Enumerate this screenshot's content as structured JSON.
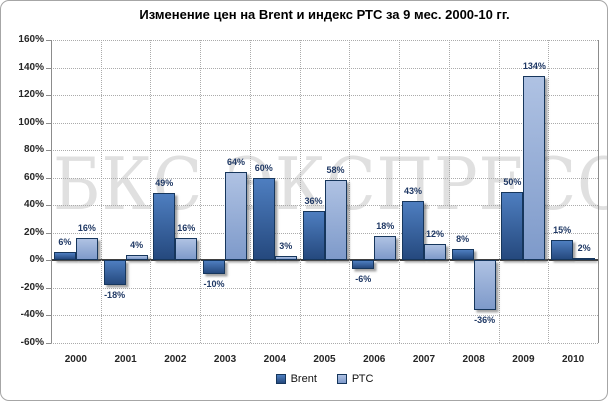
{
  "watermark": "БКС ЭКСПРЕСС",
  "chart_data": {
    "type": "bar",
    "title": "Изменение цен на Brent и индекс РТС за 9 мес. 2000-10 гг.",
    "categories": [
      "2000",
      "2001",
      "2002",
      "2003",
      "2004",
      "2005",
      "2006",
      "2007",
      "2008",
      "2009",
      "2010"
    ],
    "series": [
      {
        "name": "Brent",
        "slug": "brent",
        "values": [
          6,
          -18,
          49,
          -10,
          60,
          36,
          -6,
          43,
          8,
          50,
          15
        ],
        "color": "#2F5B99",
        "gradient_top": "#4E7EC0",
        "gradient_bottom": "#25497E"
      },
      {
        "name": "РТС",
        "slug": "rts",
        "values": [
          16,
          4,
          16,
          64,
          3,
          58,
          18,
          12,
          -36,
          134,
          2
        ],
        "color": "#92ABD6",
        "gradient_top": "#AFC2E3",
        "gradient_bottom": "#7E9ACA"
      }
    ],
    "ylim": [
      -60,
      160
    ],
    "ytick_step": 20,
    "tick_suffix": "%",
    "value_suffix": "%",
    "grid": true,
    "legend_position": "bottom"
  },
  "colors": {
    "value_label": "#1F3864",
    "axis_text": "#262626",
    "gridline": "#ABABAB",
    "zero_line": "#3F3F3F",
    "axis_line": "#8C8C8C",
    "frame_border": "#A6A6A6",
    "bar_border": "#16365C",
    "watermark": "#E0E0E0"
  }
}
